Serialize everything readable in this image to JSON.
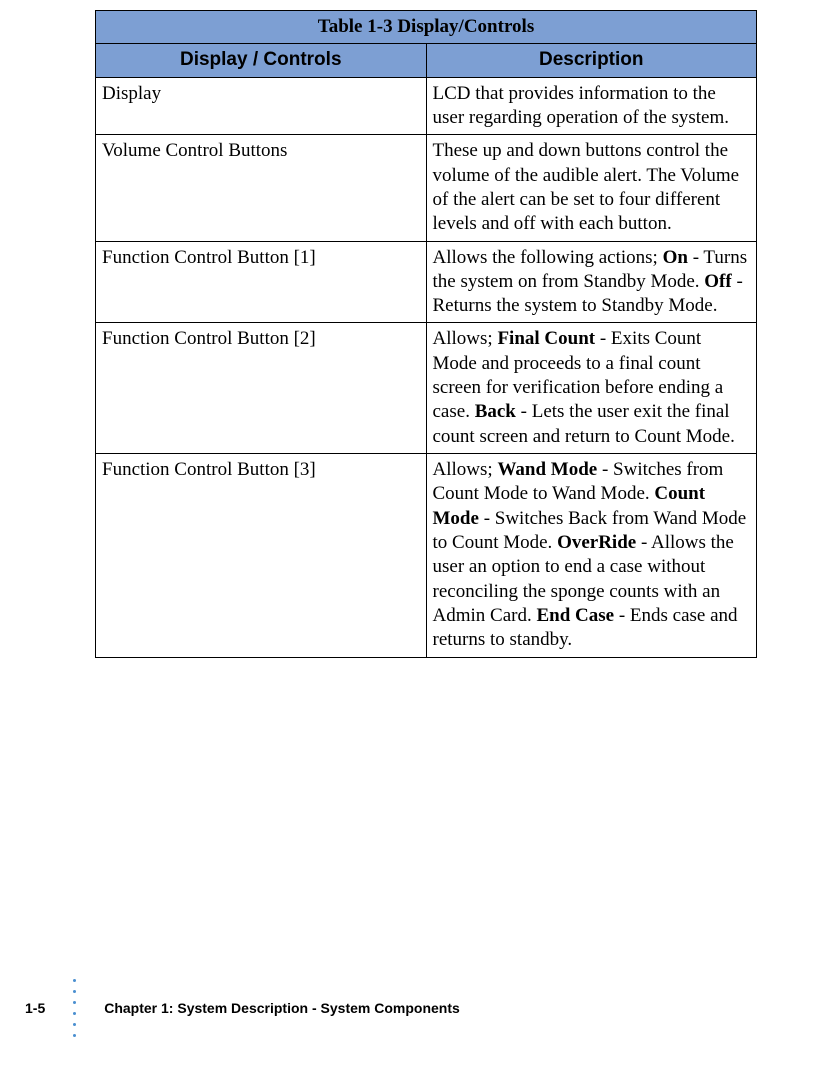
{
  "table": {
    "title": "Table 1-3 Display/Controls",
    "title_bg": "#7d9fd3",
    "header_bg": "#7d9fd3",
    "border_color": "#000000",
    "columns": [
      "Display / Controls",
      "Description"
    ],
    "rows": [
      {
        "control": "Display",
        "description_html": "LCD that provides information to the user regarding operation of the system."
      },
      {
        "control": "Volume Control Buttons",
        "description_html": "These up and down buttons control the volume of the audible alert. The Volume of the alert can be set to four different levels and off with each button."
      },
      {
        "control": "Function Control Button [1]",
        "description_html": "Allows the following actions; <b>On</b> - Turns the system on from Standby Mode. <b>Off</b> - Returns the system to Standby Mode."
      },
      {
        "control": "Function Control Button [2]",
        "description_html": "Allows; <b>Final Count</b> - Exits Count Mode and proceeds to a final count screen for verification before ending a case. <b>Back</b> - Lets the user exit the final count screen and return to Count Mode."
      },
      {
        "control": "Function Control Button [3]",
        "description_html": "Allows; <b>Wand Mode</b> - Switches from Count Mode to Wand Mode. <b>Count Mode</b> - Switches Back from Wand Mode to Count Mode. <b>OverRide</b> - Allows the user an option to end a case without reconciling the sponge counts with an Admin Card. <b>End Case</b> - Ends case and returns to standby."
      }
    ]
  },
  "footer": {
    "page_number": "1-5",
    "chapter_label": "Chapter 1: System Description",
    "separator": " - ",
    "section_label": "System Components",
    "dot_color": "#4a8fd0",
    "dot_count": 6
  }
}
